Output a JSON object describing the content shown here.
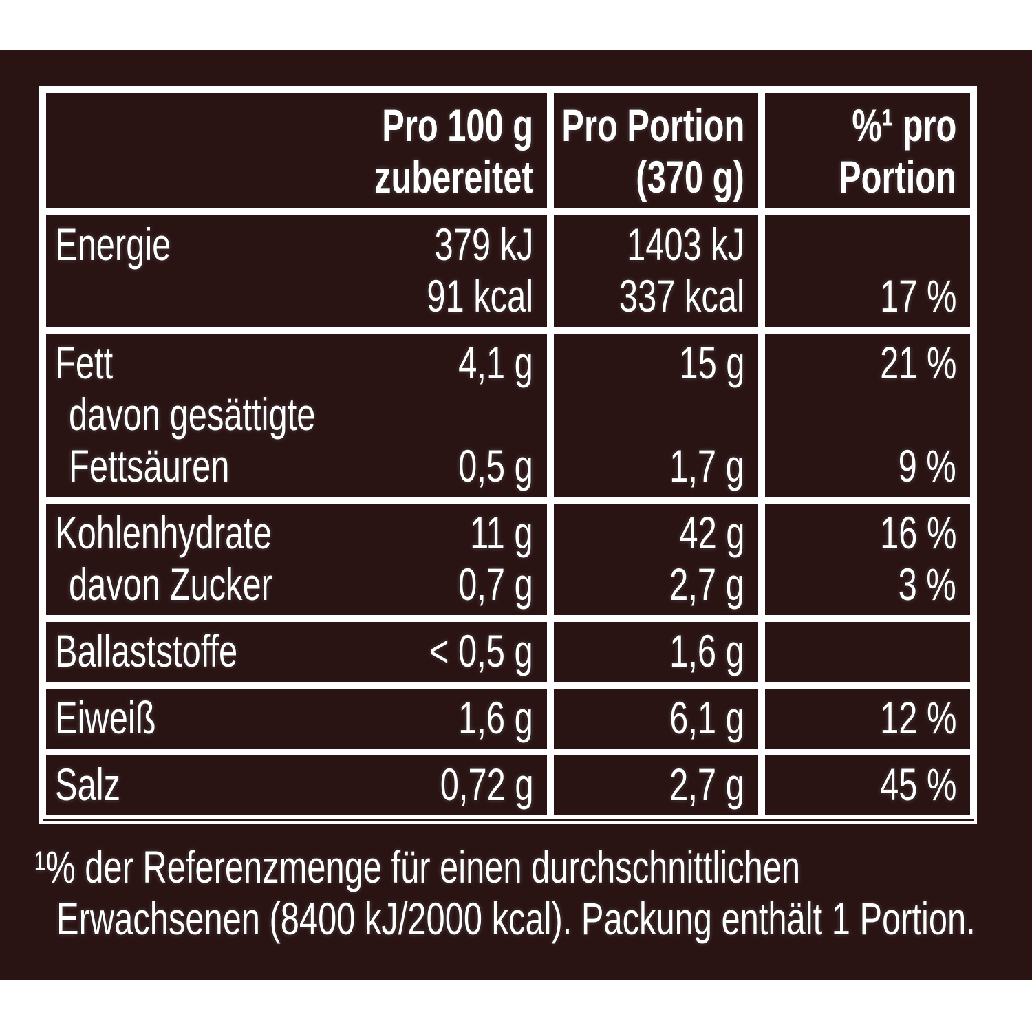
{
  "header": {
    "columns": [
      [
        "Pro 100 g",
        "zubereitet"
      ],
      [
        "Pro Portion",
        "(370 g)"
      ],
      [
        "%¹ pro",
        "Portion"
      ]
    ]
  },
  "table": {
    "groups": [
      {
        "items": [
          {
            "label": [
              "Energie"
            ],
            "values": [
              [
                "379 kJ",
                "91 kcal"
              ],
              [
                "1403 kJ",
                "337 kcal"
              ],
              [
                "17 %"
              ]
            ]
          }
        ]
      },
      {
        "items": [
          {
            "label": [
              "Fett"
            ],
            "values": [
              [
                "4,1 g"
              ],
              [
                "15 g"
              ],
              [
                "21 %"
              ]
            ]
          },
          {
            "label": [
              "davon gesättigte",
              "Fettsäuren"
            ],
            "values": [
              [
                "0,5 g"
              ],
              [
                "1,7 g"
              ],
              [
                "9 %"
              ]
            ]
          }
        ]
      },
      {
        "items": [
          {
            "label": [
              "Kohlenhydrate"
            ],
            "values": [
              [
                "11 g"
              ],
              [
                "42 g"
              ],
              [
                "16 %"
              ]
            ]
          },
          {
            "label": [
              "davon Zucker"
            ],
            "values": [
              [
                "0,7 g"
              ],
              [
                "2,7 g"
              ],
              [
                "3 %"
              ]
            ]
          }
        ]
      },
      {
        "items": [
          {
            "label": [
              "Ballaststoffe"
            ],
            "values": [
              [
                "< 0,5 g"
              ],
              [
                "1,6 g"
              ]
            ]
          }
        ]
      },
      {
        "items": [
          {
            "label": [
              "Eiweiß"
            ],
            "values": [
              [
                "1,6 g"
              ],
              [
                "6,1 g"
              ],
              [
                "12 %"
              ]
            ]
          }
        ]
      },
      {
        "items": [
          {
            "label": [
              "Salz"
            ],
            "values": [
              [
                "0,72 g"
              ],
              [
                "2,7 g"
              ],
              [
                "45 %"
              ]
            ]
          }
        ]
      }
    ]
  },
  "footnote": [
    "¹% der Referenzmenge für einen durchschnittlichen",
    "Erwachsenen (8400 kJ/2000 kcal). Packung enthält 1 Portion."
  ]
}
